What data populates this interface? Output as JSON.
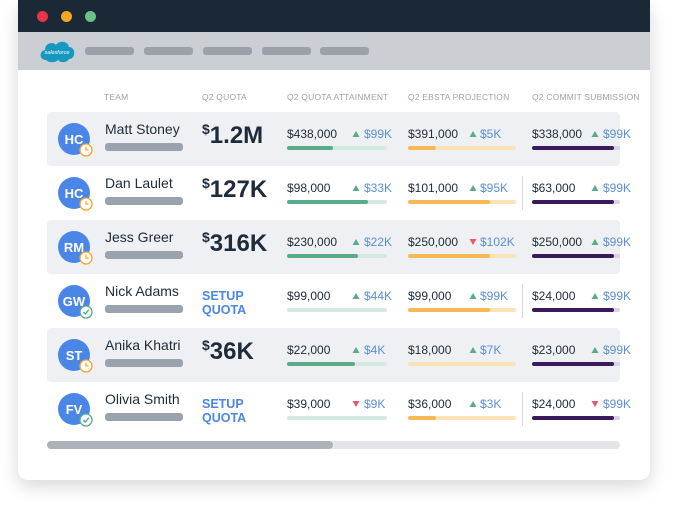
{
  "browser": {
    "logo": "salesforce"
  },
  "table": {
    "headers": [
      "TEAM",
      "Q2 QUOTA",
      "Q2 QUOTA ATTAINMENT",
      "Q2 EBSTA PROJECTION",
      "Q2 COMMIT SUBMISSION"
    ],
    "rows": [
      {
        "initials": "HC",
        "status": "clock",
        "name": "Matt Stoney",
        "quota": "$1.2M",
        "attainment": {
          "value": "$438,000",
          "direction": "up",
          "delta": "$99K",
          "progress": 0.46
        },
        "projection": {
          "value": "$391,000",
          "direction": "up",
          "delta": "$5K",
          "progress": 0.26
        },
        "commit": {
          "value": "$338,000",
          "direction": "up",
          "delta": "$99K",
          "progress": 0.93
        }
      },
      {
        "initials": "HC",
        "status": "clock",
        "name": "Dan Laulet",
        "quota": "$127K",
        "attainment": {
          "value": "$98,000",
          "direction": "up",
          "delta": "$33K",
          "progress": 0.81
        },
        "projection": {
          "value": "$101,000",
          "direction": "up",
          "delta": "$95K",
          "progress": 0.76
        },
        "commit": {
          "value": "$63,000",
          "direction": "up",
          "delta": "$99K",
          "progress": 0.93
        }
      },
      {
        "initials": "RM",
        "status": "clock",
        "name": "Jess Greer",
        "quota": "$316K",
        "attainment": {
          "value": "$230,000",
          "direction": "up",
          "delta": "$22K",
          "progress": 0.71
        },
        "projection": {
          "value": "$250,000",
          "direction": "down",
          "delta": "$102K",
          "progress": 0.76
        },
        "commit": {
          "value": "$250,000",
          "direction": "up",
          "delta": "$99K",
          "progress": 0.93
        }
      },
      {
        "initials": "GW",
        "status": "check",
        "name": "Nick Adams",
        "quota": "SETUP QUOTA",
        "attainment": {
          "value": "$99,000",
          "direction": "up",
          "delta": "$44K",
          "progress": 0
        },
        "projection": {
          "value": "$99,000",
          "direction": "up",
          "delta": "$99K",
          "progress": 0.76
        },
        "commit": {
          "value": "$24,000",
          "direction": "up",
          "delta": "$99K",
          "progress": 0.93
        }
      },
      {
        "initials": "ST",
        "status": "clock",
        "name": "Anika Khatri",
        "quota": "$36K",
        "attainment": {
          "value": "$22,000",
          "direction": "up",
          "delta": "$4K",
          "progress": 0.68
        },
        "projection": {
          "value": "$18,000",
          "direction": "up",
          "delta": "$7K",
          "progress": 0
        },
        "commit": {
          "value": "$23,000",
          "direction": "up",
          "delta": "$99K",
          "progress": 0.93
        }
      },
      {
        "initials": "FV",
        "status": "check",
        "name": "Olivia Smith",
        "quota": "SETUP QUOTA",
        "attainment": {
          "value": "$39,000",
          "direction": "down",
          "delta": "$9K",
          "progress": 0
        },
        "projection": {
          "value": "$36,000",
          "direction": "up",
          "delta": "$3K",
          "progress": 0.26
        },
        "commit": {
          "value": "$24,000",
          "direction": "down",
          "delta": "$99K",
          "progress": 0.93
        }
      }
    ]
  }
}
